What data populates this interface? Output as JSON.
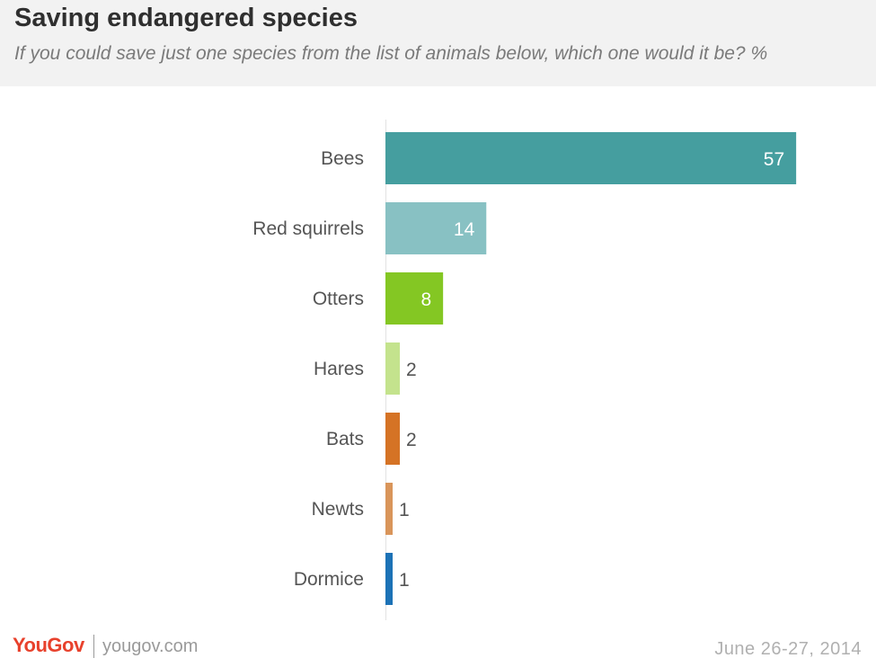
{
  "header": {
    "title": "Saving endangered species",
    "subtitle": "If you could save just one species from the list of animals below, which one would it be? %"
  },
  "chart_data": {
    "type": "bar",
    "orientation": "horizontal",
    "title": "Saving endangered species",
    "subtitle": "If you could save just one species from the list of animals below, which one would it be? %",
    "categories": [
      "Bees",
      "Red squirrels",
      "Otters",
      "Hares",
      "Bats",
      "Newts",
      "Dormice"
    ],
    "values": [
      57,
      14,
      8,
      2,
      2,
      1,
      1
    ],
    "value_labels": [
      "57",
      "14",
      "8",
      "2",
      "2",
      "1",
      "1"
    ],
    "colors": [
      "#459e9f",
      "#88c1c3",
      "#84c723",
      "#c4e38d",
      "#d57325",
      "#d9955a",
      "#1c72b6"
    ],
    "xlabel": "",
    "ylabel": "",
    "grid": false,
    "legend": "none"
  },
  "footer": {
    "brand": "YouGov",
    "site": "yougov.com",
    "date": "June 26-27, 2014"
  }
}
